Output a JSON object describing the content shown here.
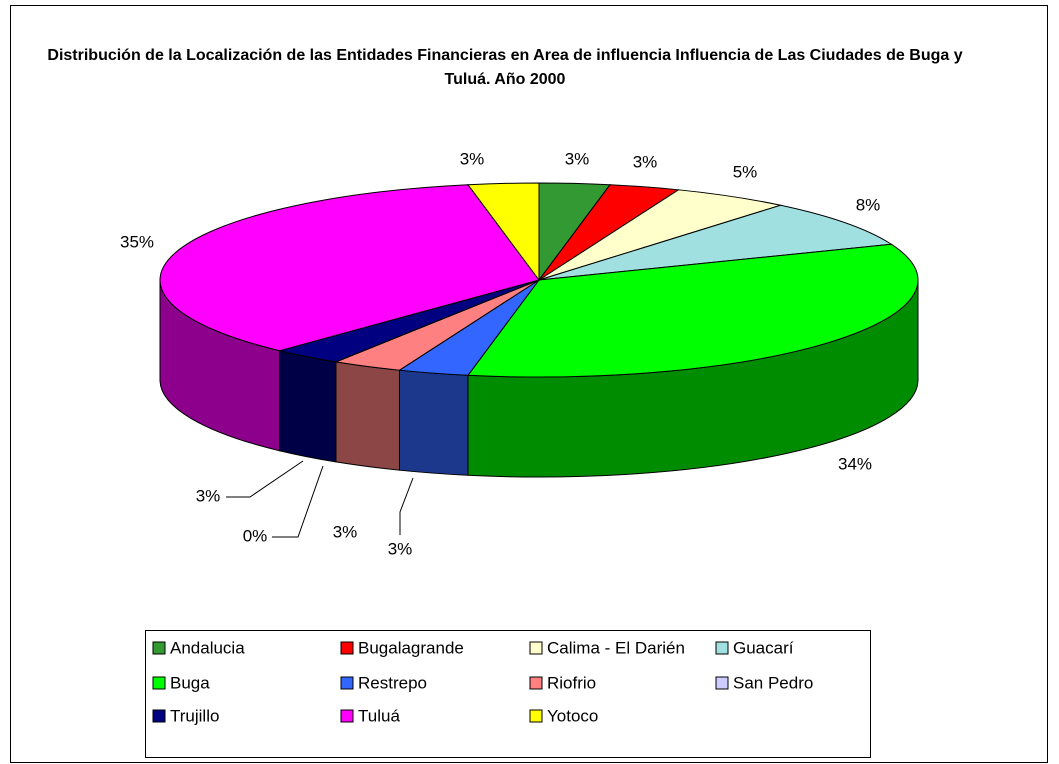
{
  "chart_data": {
    "type": "pie3d",
    "title": "Distribución de la Localización de las Entidades Financieras en Area de influencia  Influencia de Las Ciudades de Buga y Tuluá. Año 2000",
    "categories": [
      "Andalucia",
      "Bugalagrande",
      "Calima - El Darién",
      "Guacarí",
      "Buga",
      "Restrepo",
      "Riofrio",
      "San Pedro",
      "Trujillo",
      "Tuluá",
      "Yotoco"
    ],
    "values": [
      3,
      3,
      5,
      8,
      34,
      3,
      3,
      0,
      3,
      35,
      3
    ],
    "value_labels": [
      "3%",
      "3%",
      "5%",
      "8%",
      "34%",
      "3%",
      "3%",
      "0%",
      "3%",
      "35%",
      "3%"
    ],
    "colors": [
      "#339933",
      "#ff0000",
      "#ffffcc",
      "#a0e0e0",
      "#00ff00",
      "#3366ff",
      "#ff8080",
      "#ccccff",
      "#000080",
      "#ff00ff",
      "#ffff00"
    ],
    "legend": "bottom"
  }
}
